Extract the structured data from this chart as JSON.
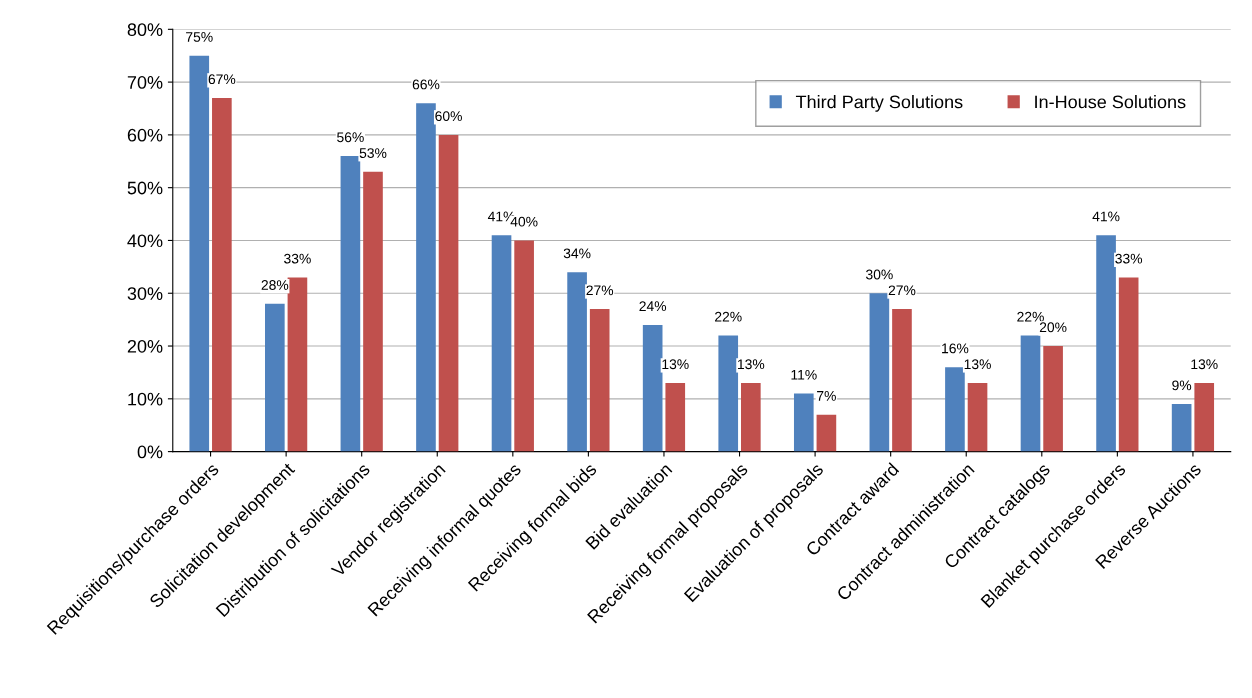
{
  "chart_data": {
    "type": "bar",
    "categories": [
      "Requisitions/purchase orders",
      "Solicitation development",
      "Distribution of solicitations",
      "Vendor registration",
      "Receiving informal quotes",
      "Receiving formal bids",
      "Bid evaluation",
      "Receiving formal proposals",
      "Evaluation of proposals",
      "Contract award",
      "Contract administration",
      "Contract catalogs",
      "Blanket purchase orders",
      "Reverse Auctions"
    ],
    "series": [
      {
        "name": "Third Party Solutions",
        "color": "#4f81bd",
        "values": [
          75,
          28,
          56,
          66,
          41,
          34,
          24,
          22,
          11,
          30,
          16,
          22,
          41,
          9
        ],
        "value_labels": [
          "75%",
          "28%",
          "56%",
          "66%",
          "41%",
          "34%",
          "24%",
          "22%",
          "11%",
          "30%",
          "16%",
          "22%",
          "41%",
          "9%"
        ]
      },
      {
        "name": "In-House Solutions",
        "color": "#c0504d",
        "values": [
          67,
          33,
          53,
          60,
          40,
          27,
          13,
          13,
          7,
          27,
          13,
          20,
          33,
          13
        ],
        "value_labels": [
          "67%",
          "33%",
          "53%",
          "60%",
          "40%",
          "27%",
          "13%",
          "13%",
          "7%",
          "27%",
          "13%",
          "20%",
          "33%",
          "13%"
        ]
      }
    ],
    "ylim": [
      0,
      80
    ],
    "yticks": [
      {
        "value": 0,
        "label": "0%"
      },
      {
        "value": 10,
        "label": "10%"
      },
      {
        "value": 20,
        "label": "20%"
      },
      {
        "value": 30,
        "label": "30%"
      },
      {
        "value": 40,
        "label": "40%"
      },
      {
        "value": 50,
        "label": "50%"
      },
      {
        "value": 60,
        "label": "60%"
      },
      {
        "value": 70,
        "label": "70%"
      },
      {
        "value": 80,
        "label": "80%"
      }
    ],
    "grid": "y",
    "legend": "top right"
  }
}
